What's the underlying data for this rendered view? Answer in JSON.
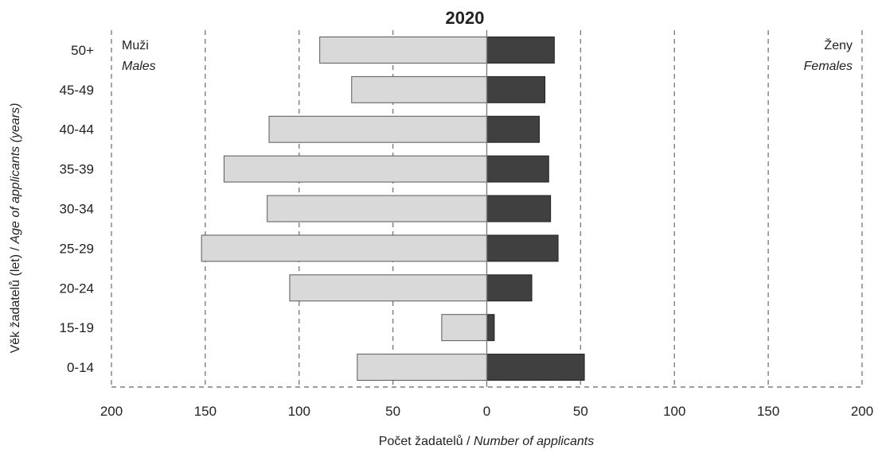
{
  "chart_data": {
    "type": "bar",
    "orientation": "horizontal",
    "subtype": "population-pyramid",
    "title": "2020",
    "categories": [
      "0-14",
      "15-19",
      "20-24",
      "25-29",
      "30-34",
      "35-39",
      "40-44",
      "45-49",
      "50+"
    ],
    "series": [
      {
        "name": "Muži",
        "name_en": "Males",
        "side": "left",
        "color": "#d9d9d9",
        "values": [
          69,
          24,
          105,
          152,
          117,
          140,
          116,
          72,
          89
        ]
      },
      {
        "name": "Ženy",
        "name_en": "Females",
        "side": "right",
        "color": "#404040",
        "values": [
          52,
          4,
          24,
          38,
          34,
          33,
          28,
          31,
          36
        ]
      }
    ],
    "xlim": [
      -200,
      200
    ],
    "xticks": [
      -200,
      -150,
      -100,
      -50,
      0,
      50,
      100,
      150,
      200
    ],
    "xtick_labels": [
      "200",
      "150",
      "100",
      "50",
      "0",
      "50",
      "100",
      "150",
      "200"
    ],
    "xlabel": {
      "cz": "Počet žadatelů",
      "sep": " / ",
      "en": "Number of applicants"
    },
    "ylabel": {
      "cz": "Věk žadatelů (let)",
      "sep": " / ",
      "en": "Age of applicants (years)"
    },
    "grid": "vertical dashed",
    "legend": "top-left and top-right labels"
  }
}
